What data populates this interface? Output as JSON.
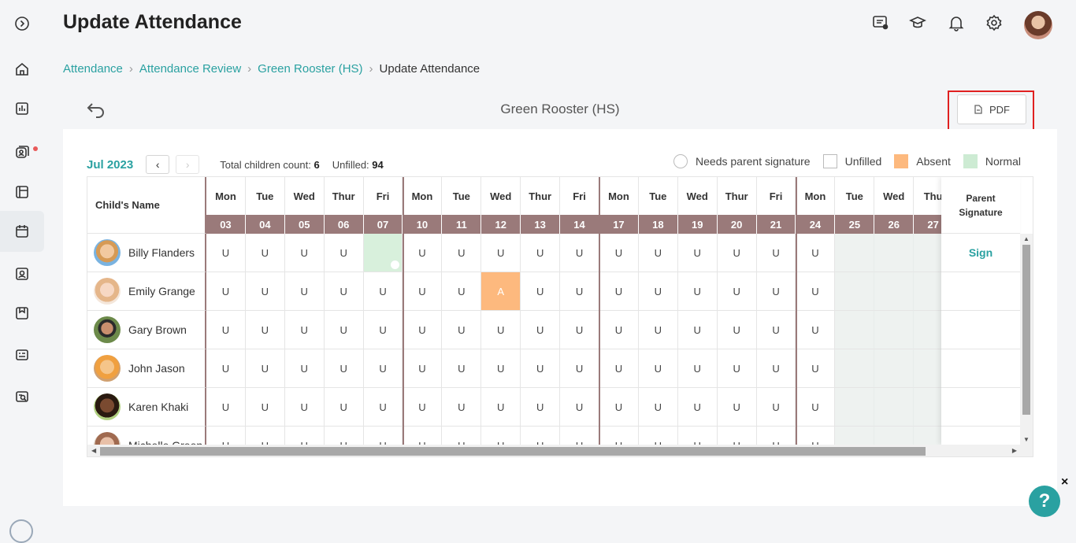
{
  "page_title": "Update Attendance",
  "breadcrumb": [
    "Attendance",
    "Attendance Review",
    "Green Rooster (HS)",
    "Update Attendance"
  ],
  "class_name": "Green Rooster (HS)",
  "pdf_label": "PDF",
  "month": "Jul 2023",
  "stats": {
    "total_label": "Total children count:",
    "total_value": "6",
    "unfilled_label": "Unfilled:",
    "unfilled_value": "94"
  },
  "legend": {
    "needs_sig": "Needs parent signature",
    "unfilled": "Unfilled",
    "absent": "Absent",
    "normal": "Normal",
    "colors": {
      "absent": "#fdb97e",
      "normal": "#cdebd3"
    }
  },
  "table": {
    "name_header": "Child's Name",
    "sig_header": "Parent Signature",
    "days": [
      {
        "day": "Mon",
        "date": "03"
      },
      {
        "day": "Tue",
        "date": "04"
      },
      {
        "day": "Wed",
        "date": "05"
      },
      {
        "day": "Thur",
        "date": "06"
      },
      {
        "day": "Fri",
        "date": "07"
      },
      {
        "day": "Mon",
        "date": "10"
      },
      {
        "day": "Tue",
        "date": "11"
      },
      {
        "day": "Wed",
        "date": "12"
      },
      {
        "day": "Thur",
        "date": "13"
      },
      {
        "day": "Fri",
        "date": "14"
      },
      {
        "day": "Mon",
        "date": "17"
      },
      {
        "day": "Tue",
        "date": "18"
      },
      {
        "day": "Wed",
        "date": "19"
      },
      {
        "day": "Thur",
        "date": "20"
      },
      {
        "day": "Fri",
        "date": "21"
      },
      {
        "day": "Mon",
        "date": "24"
      },
      {
        "day": "Tue",
        "date": "25"
      },
      {
        "day": "Wed",
        "date": "26"
      },
      {
        "day": "Thu",
        "date": "27"
      }
    ],
    "rows": [
      {
        "name": "Billy Flanders",
        "sign": "Sign",
        "cells": [
          "U",
          "U",
          "U",
          "U",
          "",
          "U",
          "U",
          "U",
          "U",
          "U",
          "U",
          "U",
          "U",
          "U",
          "U",
          "U",
          "",
          "",
          ""
        ]
      },
      {
        "name": "Emily Grange",
        "sign": "",
        "cells": [
          "U",
          "U",
          "U",
          "U",
          "U",
          "U",
          "U",
          "A",
          "U",
          "U",
          "U",
          "U",
          "U",
          "U",
          "U",
          "U",
          "",
          "",
          ""
        ]
      },
      {
        "name": "Gary Brown",
        "sign": "",
        "cells": [
          "U",
          "U",
          "U",
          "U",
          "U",
          "U",
          "U",
          "U",
          "U",
          "U",
          "U",
          "U",
          "U",
          "U",
          "U",
          "U",
          "",
          "",
          ""
        ]
      },
      {
        "name": "John Jason",
        "sign": "",
        "cells": [
          "U",
          "U",
          "U",
          "U",
          "U",
          "U",
          "U",
          "U",
          "U",
          "U",
          "U",
          "U",
          "U",
          "U",
          "U",
          "U",
          "",
          "",
          ""
        ]
      },
      {
        "name": "Karen Khaki",
        "sign": "",
        "cells": [
          "U",
          "U",
          "U",
          "U",
          "U",
          "U",
          "U",
          "U",
          "U",
          "U",
          "U",
          "U",
          "U",
          "U",
          "U",
          "U",
          "",
          "",
          ""
        ]
      },
      {
        "name": "Michelle Green",
        "sign": "",
        "cells": [
          "U",
          "U",
          "U",
          "U",
          "U",
          "U",
          "U",
          "U",
          "U",
          "U",
          "U",
          "U",
          "U",
          "U",
          "U",
          "U",
          "",
          "",
          ""
        ]
      }
    ]
  },
  "help_label": "?",
  "help_close": "×"
}
